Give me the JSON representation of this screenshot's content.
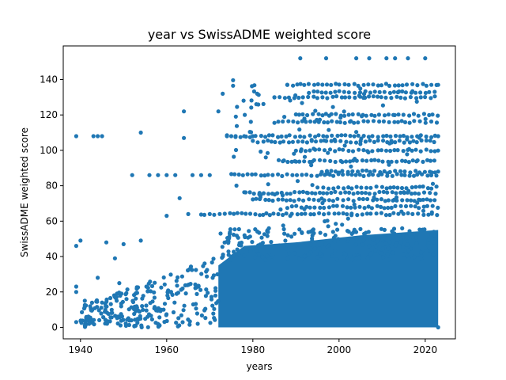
{
  "chart_data": {
    "type": "scatter",
    "title": "year vs SwissADME weighted score",
    "xlabel": "years",
    "ylabel": "SwissADME weighted score",
    "xlim": [
      1936,
      2027
    ],
    "ylim": [
      -6.5,
      159
    ],
    "xticks": [
      1940,
      1960,
      1980,
      2000,
      2020
    ],
    "yticks": [
      0,
      20,
      40,
      60,
      80,
      100,
      120,
      140
    ],
    "marker_color": "#1f77b4",
    "grid": false,
    "legend": "none",
    "x_range_data": [
      1939,
      2023
    ],
    "y_range_data": [
      0,
      152
    ],
    "series": [
      {
        "values": [
          {
            "x": 1939,
            "y": 108
          },
          {
            "x": 1939,
            "y": 46
          },
          {
            "x": 1939,
            "y": 23
          },
          {
            "x": 1939,
            "y": 20
          },
          {
            "x": 1939,
            "y": 3
          },
          {
            "x": 1940,
            "y": 49
          },
          {
            "x": 1941,
            "y": 15
          },
          {
            "x": 1942,
            "y": 2
          },
          {
            "x": 1943,
            "y": 108
          },
          {
            "x": 1944,
            "y": 108
          },
          {
            "x": 1945,
            "y": 108
          },
          {
            "x": 1944,
            "y": 28
          },
          {
            "x": 1945,
            "y": 14
          },
          {
            "x": 1946,
            "y": 48
          },
          {
            "x": 1948,
            "y": 39
          },
          {
            "x": 1949,
            "y": 25
          },
          {
            "x": 1950,
            "y": 47
          },
          {
            "x": 1952,
            "y": 86
          },
          {
            "x": 1954,
            "y": 110
          },
          {
            "x": 1954,
            "y": 49
          },
          {
            "x": 1956,
            "y": 86
          },
          {
            "x": 1958,
            "y": 86
          },
          {
            "x": 1960,
            "y": 86
          },
          {
            "x": 1960,
            "y": 63
          },
          {
            "x": 1962,
            "y": 86
          },
          {
            "x": 1963,
            "y": 73
          },
          {
            "x": 1964,
            "y": 122
          },
          {
            "x": 1964,
            "y": 107
          },
          {
            "x": 1965,
            "y": 64
          },
          {
            "x": 1966,
            "y": 86
          },
          {
            "x": 1968,
            "y": 86
          },
          {
            "x": 1970,
            "y": 86
          },
          {
            "x": 1972,
            "y": 122
          },
          {
            "x": 1973,
            "y": 132
          },
          {
            "x": 1974,
            "y": 108
          },
          {
            "x": 1976,
            "y": 108
          },
          {
            "x": 1978,
            "y": 108
          },
          {
            "x": 1980,
            "y": 108
          },
          {
            "x": 1981,
            "y": 132
          },
          {
            "x": 1983,
            "y": 96
          },
          {
            "x": 1985,
            "y": 130
          },
          {
            "x": 1988,
            "y": 137
          },
          {
            "x": 1991,
            "y": 152
          },
          {
            "x": 1997,
            "y": 152
          },
          {
            "x": 2004,
            "y": 152
          },
          {
            "x": 2007,
            "y": 152
          },
          {
            "x": 2011,
            "y": 152
          },
          {
            "x": 2013,
            "y": 152
          },
          {
            "x": 2016,
            "y": 152
          },
          {
            "x": 2020,
            "y": 152
          },
          {
            "x": 2023,
            "y": 137
          },
          {
            "x": 2023,
            "y": 108
          },
          {
            "x": 2023,
            "y": 88
          },
          {
            "x": 2023,
            "y": 0
          }
        ]
      }
    ]
  }
}
